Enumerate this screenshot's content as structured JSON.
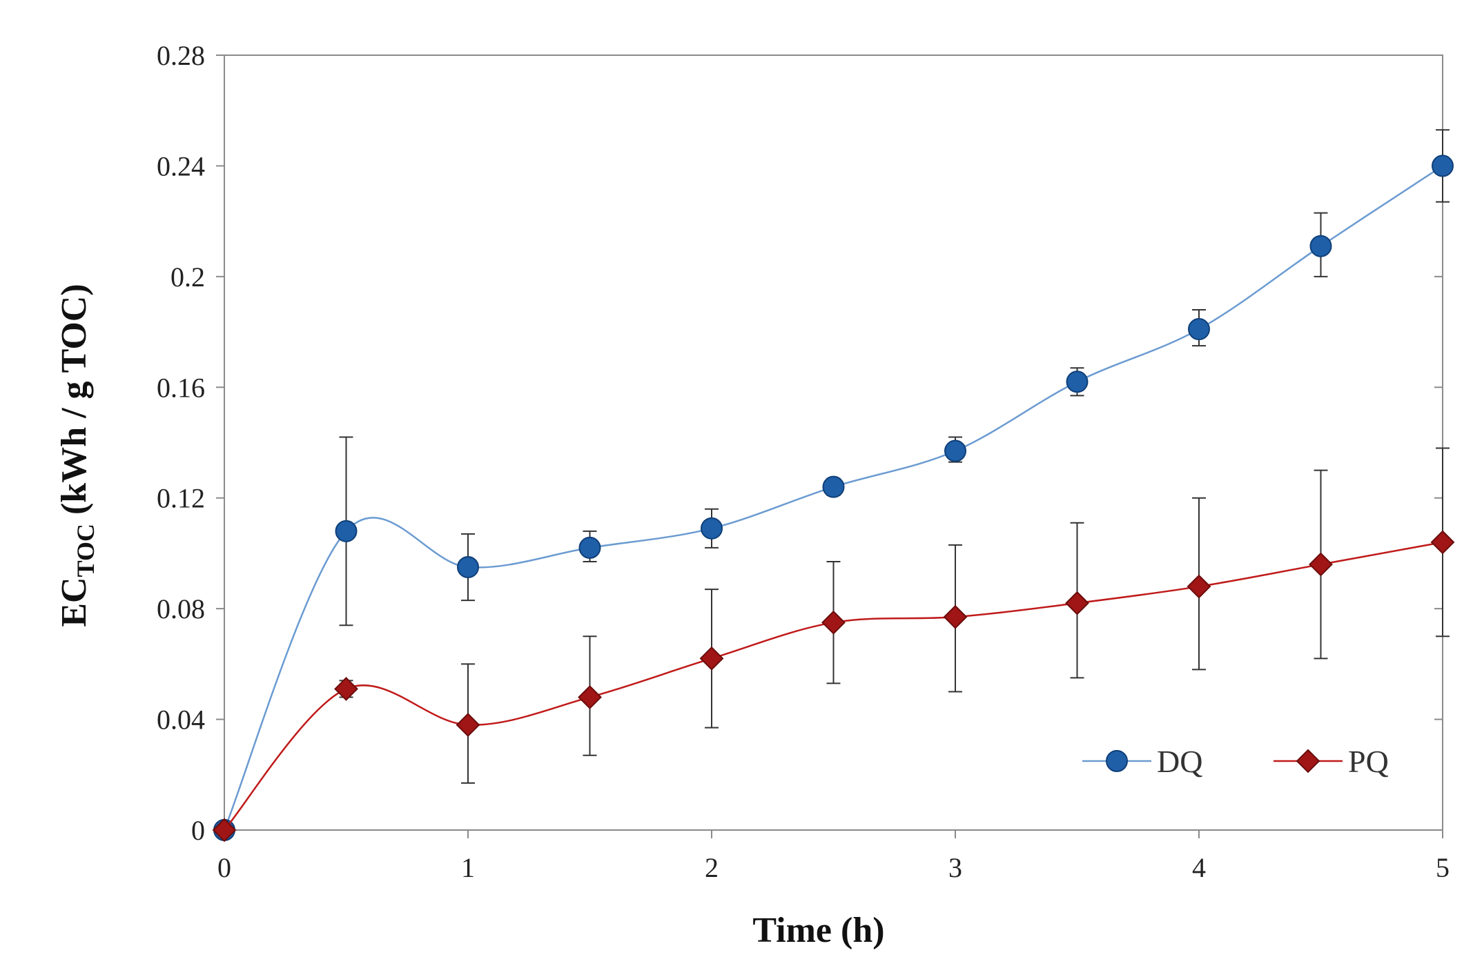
{
  "chart_data": {
    "type": "line",
    "title": "",
    "xlabel": "Time (h)",
    "ylabel_main": "EC",
    "ylabel_sub": "TOC",
    "ylabel_rest": " (kWh / g TOC)",
    "xlim": [
      0,
      5
    ],
    "ylim": [
      0,
      0.28
    ],
    "xticks": [
      0,
      1,
      2,
      3,
      4,
      5
    ],
    "xtick_labels": [
      "0",
      "1",
      "2",
      "3",
      "4",
      "5"
    ],
    "yticks": [
      0,
      0.04,
      0.08,
      0.12,
      0.16,
      0.2,
      0.24,
      0.28
    ],
    "ytick_labels": [
      "0",
      "0.04",
      "0.08",
      "0.12",
      "0.16",
      "0.2",
      "0.24",
      "0.28"
    ],
    "legend_position": "bottom-right",
    "series": [
      {
        "name": "DQ",
        "color": "#1f5fa8",
        "line_color": "#6b9bd1",
        "marker": "circle",
        "x": [
          0,
          0.5,
          1,
          1.5,
          2,
          2.5,
          3,
          3.5,
          4,
          4.5,
          5
        ],
        "y": [
          0,
          0.108,
          0.095,
          0.102,
          0.109,
          0.124,
          0.137,
          0.162,
          0.181,
          0.211,
          0.24
        ],
        "err_low": [
          0,
          0.074,
          0.083,
          0.097,
          0.102,
          0.121,
          0.133,
          0.157,
          0.175,
          0.2,
          0.227
        ],
        "err_high": [
          0,
          0.142,
          0.107,
          0.108,
          0.116,
          0.127,
          0.142,
          0.167,
          0.188,
          0.223,
          0.253
        ]
      },
      {
        "name": "PQ",
        "color": "#a01515",
        "line_color": "#c01a1a",
        "marker": "diamond",
        "x": [
          0,
          0.5,
          1,
          1.5,
          2,
          2.5,
          3,
          3.5,
          4,
          4.5,
          5
        ],
        "y": [
          0,
          0.051,
          0.038,
          0.048,
          0.062,
          0.075,
          0.077,
          0.082,
          0.088,
          0.096,
          0.104
        ],
        "err_low": [
          0,
          0.048,
          0.017,
          0.027,
          0.037,
          0.053,
          0.05,
          0.055,
          0.058,
          0.062,
          0.07
        ],
        "err_high": [
          0,
          0.054,
          0.06,
          0.07,
          0.087,
          0.097,
          0.103,
          0.111,
          0.12,
          0.13,
          0.138
        ]
      }
    ]
  }
}
